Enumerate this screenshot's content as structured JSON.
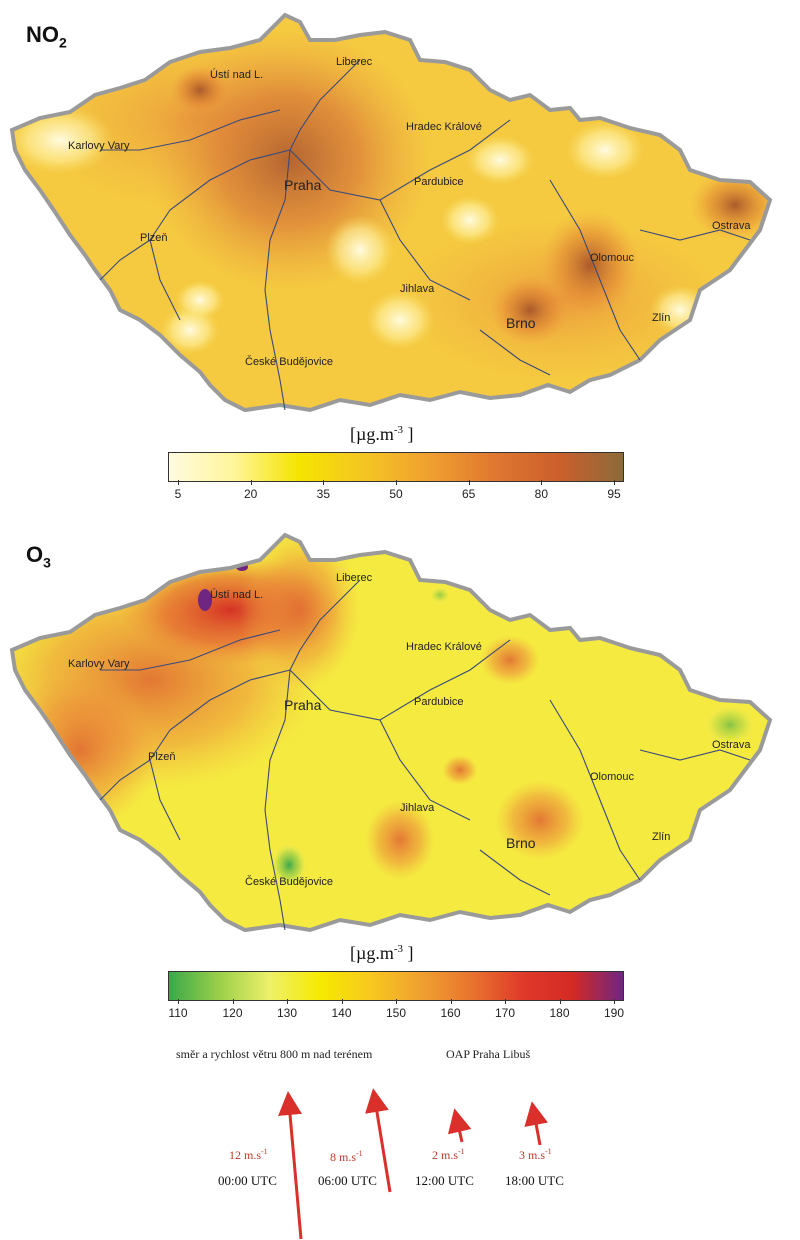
{
  "maps": [
    {
      "id": "no2",
      "title_main": "NO",
      "title_sub": "2",
      "unit_main": "[µg.m",
      "unit_exp": "-3",
      "unit_close": " ]",
      "legend_ticks": [
        "5",
        "20",
        "35",
        "50",
        "65",
        "80",
        "95"
      ],
      "legend_colors": [
        "#fffbe0",
        "#fff59a",
        "#f5e400",
        "#f5c623",
        "#f0a030",
        "#e07830",
        "#cc5f2c",
        "#8d6a3a"
      ],
      "cities": [
        "Liberec",
        "Ústí nad L.",
        "Karlovy Vary",
        "Hradec Králové",
        "Pardubice",
        "Praha",
        "Plzeň",
        "Ostrava",
        "Olomouc",
        "Jihlava",
        "Brno",
        "Zlín",
        "České Budějovice"
      ]
    },
    {
      "id": "o3",
      "title_main": "O",
      "title_sub": "3",
      "unit_main": "[µg.m",
      "unit_exp": "-3",
      "unit_close": " ]",
      "legend_ticks": [
        "110",
        "120",
        "130",
        "140",
        "150",
        "160",
        "170",
        "180",
        "190"
      ],
      "legend_colors": [
        "#3ca84a",
        "#9bd04a",
        "#eef06a",
        "#f7ea00",
        "#f7c81e",
        "#f0a030",
        "#e8742e",
        "#e03a2a",
        "#d42a24",
        "#6e2682"
      ],
      "cities": [
        "Liberec",
        "Ústí nad L.",
        "Karlovy Vary",
        "Hradec Králové",
        "Pardubice",
        "Praha",
        "Plzeň",
        "Ostrava",
        "Olomouc",
        "Jihlava",
        "Brno",
        "Zlín",
        "České Budějovice"
      ]
    }
  ],
  "wind": {
    "caption": "směr a rychlost větru 800 m nad terénem",
    "source": "OAP Praha Libuš",
    "items": [
      {
        "speed_value": "12 m.s",
        "speed_exp": "-1",
        "time": "00:00  UTC",
        "speed": 12
      },
      {
        "speed_value": "8 m.s",
        "speed_exp": "-1",
        "time": "06:00  UTC",
        "speed": 8
      },
      {
        "speed_value": "2 m.s",
        "speed_exp": "-1",
        "time": "12:00  UTC",
        "speed": 2
      },
      {
        "speed_value": "3 m.s",
        "speed_exp": "-1",
        "time": "18:00  UTC",
        "speed": 3
      }
    ]
  },
  "colors": {
    "arrow": "#d9302b",
    "border": "#9a9a9a",
    "river": "#3a4a7a",
    "city_outline": "#d02020"
  }
}
